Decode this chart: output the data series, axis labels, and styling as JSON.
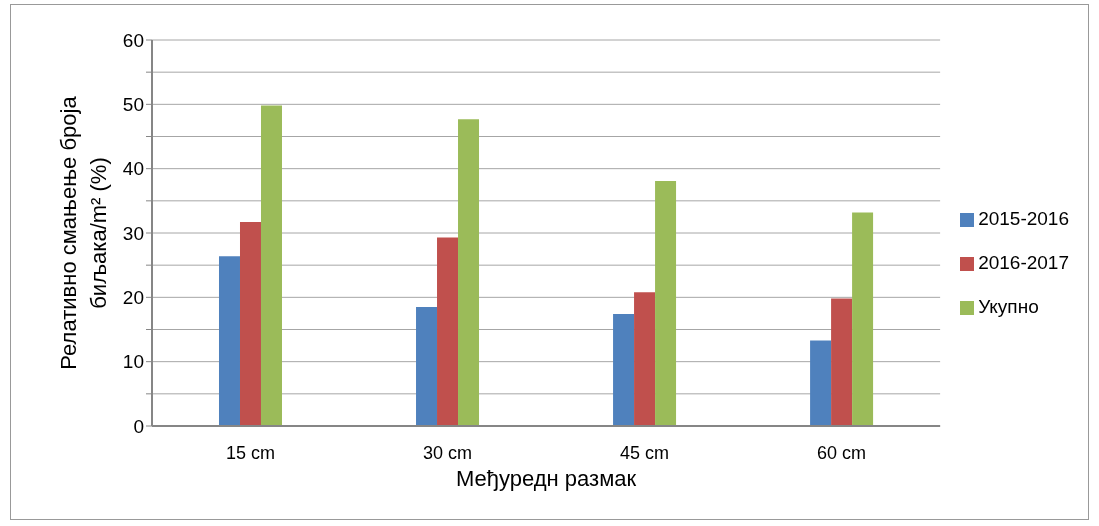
{
  "chart_data": {
    "type": "bar",
    "xlabel": "Међуредн размак",
    "ylabel": "Релативно смањење броја биљака/m² (%)",
    "categories": [
      "15 cm",
      "30 cm",
      "45 cm",
      "60 cm"
    ],
    "series": [
      {
        "name": "2015-2016",
        "color": "#4f81bd",
        "values": [
          26.4,
          18.5,
          17.4,
          13.3
        ]
      },
      {
        "name": "2016-2017",
        "color": "#c0504d",
        "values": [
          31.7,
          29.3,
          20.8,
          19.8
        ]
      },
      {
        "name": "Укупно",
        "color": "#9bbb59",
        "values": [
          49.8,
          47.7,
          38.1,
          33.2
        ]
      }
    ],
    "ylim": [
      0,
      60
    ],
    "yticks": [
      0,
      {
        "value": 5,
        "label": null
      },
      10,
      {
        "value": 15,
        "label": null
      },
      20,
      {
        "value": 25,
        "label": null
      },
      30,
      {
        "value": 35,
        "label": null
      },
      40,
      {
        "value": 45,
        "label": null
      },
      50,
      {
        "value": 55,
        "label": null
      },
      60
    ],
    "grid": "y",
    "legend": "right"
  }
}
